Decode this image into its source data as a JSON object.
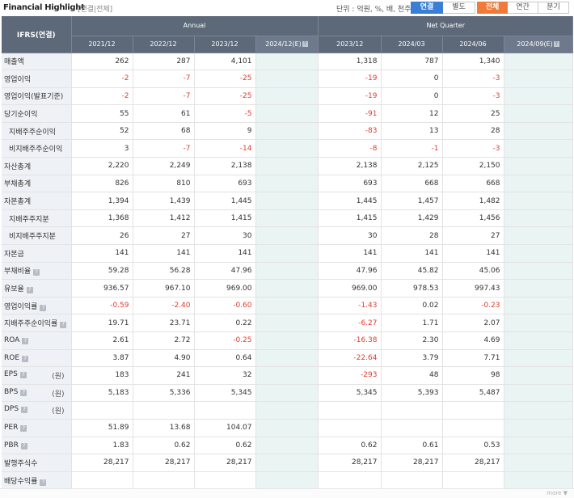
{
  "header": {
    "title": "Financial Highlight",
    "title_sub": "[연결|전체]",
    "unit": "단위 : 억원, %, 배, 천주",
    "consolidation_tabs": [
      "연결",
      "별도"
    ],
    "period_tabs": [
      "전체",
      "연간",
      "분기"
    ]
  },
  "table": {
    "ifrs_label": "IFRS(연결)",
    "group_annual": "Annual",
    "group_quarter": "Net Quarter",
    "annual_cols": [
      "2021/12",
      "2022/12",
      "2023/12",
      "2024/12(E)"
    ],
    "quarter_cols": [
      "2023/12",
      "2024/03",
      "2024/06",
      "2024/09(E)"
    ],
    "rows": [
      {
        "label": "매출액",
        "sub": false,
        "info": false,
        "unit": "",
        "annual": [
          "262",
          "287",
          "4,101",
          ""
        ],
        "quarter": [
          "1,318",
          "787",
          "1,340",
          ""
        ]
      },
      {
        "label": "영업이익",
        "sub": false,
        "info": false,
        "unit": "",
        "annual": [
          "-2",
          "-7",
          "-25",
          ""
        ],
        "quarter": [
          "-19",
          "0",
          "-3",
          ""
        ]
      },
      {
        "label": "영업이익(발표기준)",
        "sub": false,
        "info": false,
        "unit": "",
        "annual": [
          "-2",
          "-7",
          "-25",
          ""
        ],
        "quarter": [
          "-19",
          "0",
          "-3",
          ""
        ]
      },
      {
        "label": "당기순이익",
        "sub": false,
        "info": false,
        "unit": "",
        "annual": [
          "55",
          "61",
          "-5",
          ""
        ],
        "quarter": [
          "-91",
          "12",
          "25",
          ""
        ]
      },
      {
        "label": "지배주주순이익",
        "sub": true,
        "info": false,
        "unit": "",
        "annual": [
          "52",
          "68",
          "9",
          ""
        ],
        "quarter": [
          "-83",
          "13",
          "28",
          ""
        ]
      },
      {
        "label": "비지배주주순이익",
        "sub": true,
        "info": false,
        "unit": "",
        "annual": [
          "3",
          "-7",
          "-14",
          ""
        ],
        "quarter": [
          "-8",
          "-1",
          "-3",
          ""
        ]
      },
      {
        "label": "자산총계",
        "sub": false,
        "info": false,
        "unit": "",
        "annual": [
          "2,220",
          "2,249",
          "2,138",
          ""
        ],
        "quarter": [
          "2,138",
          "2,125",
          "2,150",
          ""
        ]
      },
      {
        "label": "부채총계",
        "sub": false,
        "info": false,
        "unit": "",
        "annual": [
          "826",
          "810",
          "693",
          ""
        ],
        "quarter": [
          "693",
          "668",
          "668",
          ""
        ]
      },
      {
        "label": "자본총계",
        "sub": false,
        "info": false,
        "unit": "",
        "annual": [
          "1,394",
          "1,439",
          "1,445",
          ""
        ],
        "quarter": [
          "1,445",
          "1,457",
          "1,482",
          ""
        ]
      },
      {
        "label": "지배주주지분",
        "sub": true,
        "info": false,
        "unit": "",
        "annual": [
          "1,368",
          "1,412",
          "1,415",
          ""
        ],
        "quarter": [
          "1,415",
          "1,429",
          "1,456",
          ""
        ]
      },
      {
        "label": "비지배주주지분",
        "sub": true,
        "info": false,
        "unit": "",
        "annual": [
          "26",
          "27",
          "30",
          ""
        ],
        "quarter": [
          "30",
          "28",
          "27",
          ""
        ]
      },
      {
        "label": "자본금",
        "sub": false,
        "info": false,
        "unit": "",
        "annual": [
          "141",
          "141",
          "141",
          ""
        ],
        "quarter": [
          "141",
          "141",
          "141",
          ""
        ]
      },
      {
        "label": "부채비율",
        "sub": false,
        "info": true,
        "unit": "",
        "annual": [
          "59.28",
          "56.28",
          "47.96",
          ""
        ],
        "quarter": [
          "47.96",
          "45.82",
          "45.06",
          ""
        ]
      },
      {
        "label": "유보율",
        "sub": false,
        "info": true,
        "unit": "",
        "annual": [
          "936.57",
          "967.10",
          "969.00",
          ""
        ],
        "quarter": [
          "969.00",
          "978.53",
          "997.43",
          ""
        ]
      },
      {
        "label": "영업이익률",
        "sub": false,
        "info": true,
        "unit": "",
        "annual": [
          "-0.59",
          "-2.40",
          "-0.60",
          ""
        ],
        "quarter": [
          "-1.43",
          "0.02",
          "-0.23",
          ""
        ]
      },
      {
        "label": "지배주주순이익률",
        "sub": false,
        "info": true,
        "unit": "",
        "annual": [
          "19.71",
          "23.71",
          "0.22",
          ""
        ],
        "quarter": [
          "-6.27",
          "1.71",
          "2.07",
          ""
        ]
      },
      {
        "label": "ROA",
        "sub": false,
        "info": true,
        "unit": "",
        "annual": [
          "2.61",
          "2.72",
          "-0.25",
          ""
        ],
        "quarter": [
          "-16.38",
          "2.30",
          "4.69",
          ""
        ]
      },
      {
        "label": "ROE",
        "sub": false,
        "info": true,
        "unit": "",
        "annual": [
          "3.87",
          "4.90",
          "0.64",
          ""
        ],
        "quarter": [
          "-22.64",
          "3.79",
          "7.71",
          ""
        ]
      },
      {
        "label": "EPS",
        "sub": false,
        "info": true,
        "unit": "(원)",
        "annual": [
          "183",
          "241",
          "32",
          ""
        ],
        "quarter": [
          "-293",
          "48",
          "98",
          ""
        ]
      },
      {
        "label": "BPS",
        "sub": false,
        "info": true,
        "unit": "(원)",
        "annual": [
          "5,183",
          "5,336",
          "5,345",
          ""
        ],
        "quarter": [
          "5,345",
          "5,393",
          "5,487",
          ""
        ]
      },
      {
        "label": "DPS",
        "sub": false,
        "info": true,
        "unit": "(원)",
        "annual": [
          "",
          "",
          "",
          ""
        ],
        "quarter": [
          "",
          "",
          "",
          ""
        ]
      },
      {
        "label": "PER",
        "sub": false,
        "info": true,
        "unit": "",
        "annual": [
          "51.89",
          "13.68",
          "104.07",
          ""
        ],
        "quarter": [
          "",
          "",
          "",
          ""
        ]
      },
      {
        "label": "PBR",
        "sub": false,
        "info": true,
        "unit": "",
        "annual": [
          "1.83",
          "0.62",
          "0.62",
          ""
        ],
        "quarter": [
          "0.62",
          "0.61",
          "0.53",
          ""
        ]
      },
      {
        "label": "발행주식수",
        "sub": false,
        "info": false,
        "unit": "",
        "annual": [
          "28,217",
          "28,217",
          "28,217",
          ""
        ],
        "quarter": [
          "28,217",
          "28,217",
          "28,217",
          ""
        ]
      },
      {
        "label": "배당수익률",
        "sub": false,
        "info": true,
        "unit": "",
        "annual": [
          "",
          "",
          "",
          ""
        ],
        "quarter": [
          "",
          "",
          "",
          ""
        ]
      }
    ]
  },
  "footer": {
    "more_label": "more ▼"
  },
  "colors": {
    "header_bg": "#5d6878",
    "negative": "#e03c2e",
    "estimate_col": "#eaf4f3",
    "active_blue": "#3a7fd5",
    "active_orange": "#f07a3a"
  }
}
